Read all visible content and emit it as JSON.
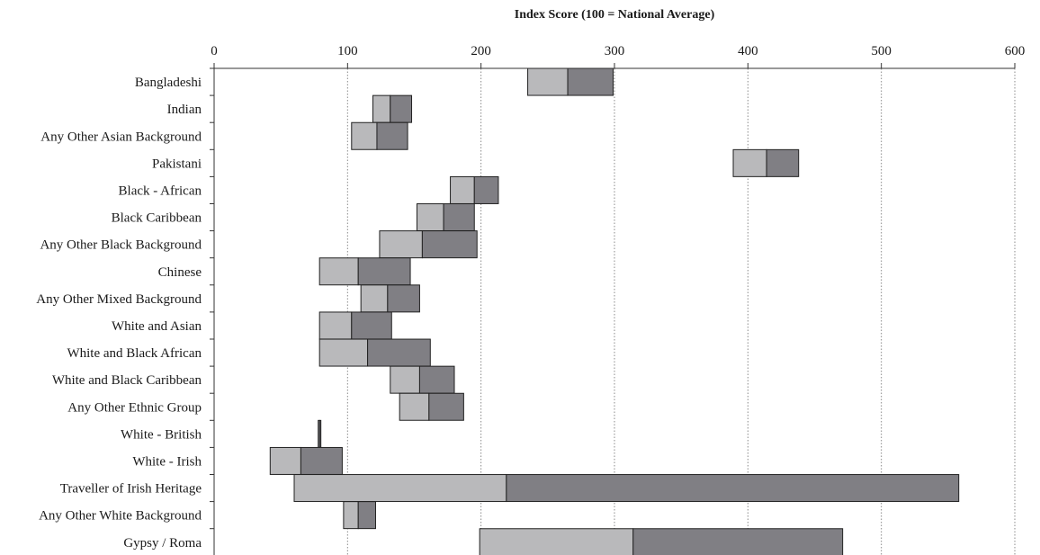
{
  "chart_data": {
    "type": "bar",
    "orientation": "horizontal",
    "stacking": "floating-range",
    "title": "Index Score (100 = National Average)",
    "xlabel": "Index Score (100 = National Average)",
    "ylabel": "",
    "xlim": [
      0,
      600
    ],
    "xticks": [
      0,
      100,
      200,
      300,
      400,
      500,
      600
    ],
    "x_axis_position": "top",
    "grid": "vertical-dotted",
    "legend": "none",
    "categories": [
      "Bangladeshi",
      "Indian",
      "Any Other Asian Background",
      "Pakistani",
      "Black - African",
      "Black Caribbean",
      "Any Other Black Background",
      "Chinese",
      "Any Other Mixed Background",
      "White and Asian",
      "White and Black African",
      "White and Black Caribbean",
      "Any Other Ethnic Group",
      "White - British",
      "White - Irish",
      "Traveller of Irish Heritage",
      "Any Other White Background",
      "Gypsy / Roma"
    ],
    "low": [
      235,
      119,
      103,
      389,
      177,
      152,
      124,
      79,
      110,
      79,
      79,
      132,
      139,
      78,
      42,
      60,
      97,
      199
    ],
    "mid": [
      265,
      132,
      122,
      414,
      195,
      172,
      156,
      108,
      130,
      103,
      115,
      154,
      161,
      79,
      65,
      219,
      108,
      314
    ],
    "high": [
      299,
      148,
      145,
      438,
      213,
      195,
      197,
      147,
      154,
      133,
      162,
      180,
      187,
      80,
      96,
      558,
      121,
      471
    ],
    "colors": {
      "lower_segment": "#b9b9bb",
      "upper_segment": "#807f84",
      "edge": "#222222",
      "grid": "#8a8a8a"
    }
  }
}
